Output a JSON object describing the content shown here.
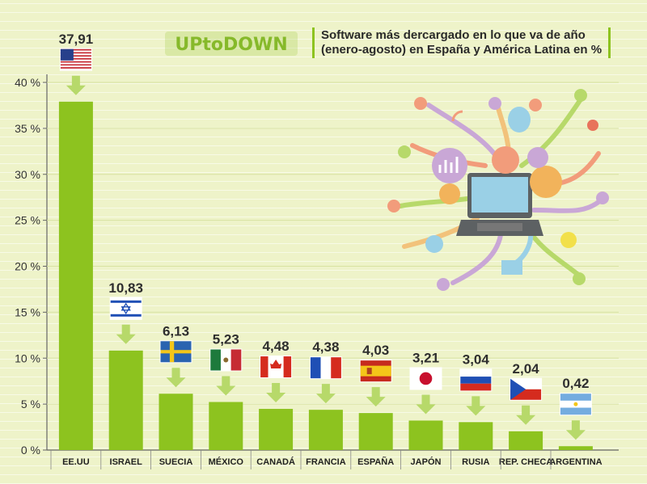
{
  "brand": {
    "logo_text": "UPtoDOWN",
    "colors": {
      "bar": "#8dc31f",
      "arrow": "#b7d96a",
      "grid": "#d7e2a0",
      "title_accent": "#8dc31f"
    }
  },
  "chart_data": {
    "type": "bar",
    "title": "Software más dercargado en lo que va de año (enero-agosto) en España y América Latina en %",
    "title_lines": [
      "Software más dercargado en lo que va de año",
      "(enero-agosto) en España y América Latina en %"
    ],
    "categories": [
      "EE.UU",
      "ISRAEL",
      "SUECIA",
      "MÉXICO",
      "CANADÁ",
      "FRANCIA",
      "ESPAÑA",
      "JAPÓN",
      "RUSIA",
      "REP. CHECA",
      "ARGENTINA"
    ],
    "values": [
      37.91,
      10.83,
      6.13,
      5.23,
      4.48,
      4.38,
      4.03,
      3.21,
      3.04,
      2.04,
      0.42
    ],
    "value_labels": [
      "37,91",
      "10,83",
      "6,13",
      "5,23",
      "4,48",
      "4,38",
      "4,03",
      "3,21",
      "3,04",
      "2,04",
      "0,42"
    ],
    "flags": [
      "us-flag",
      "israel-flag",
      "sweden-flag",
      "mexico-flag",
      "canada-flag",
      "france-flag",
      "spain-flag",
      "japan-flag",
      "russia-flag",
      "czech-flag",
      "argentina-flag"
    ],
    "ylim": [
      0,
      40
    ],
    "yticks": [
      0,
      5,
      10,
      15,
      20,
      25,
      30,
      35,
      40
    ],
    "ytick_labels": [
      "0 %",
      "5 %",
      "10 %",
      "15 %",
      "20 %",
      "25 %",
      "30 %",
      "35 %",
      "40 %"
    ],
    "xlabel": "",
    "ylabel": "",
    "grid": true,
    "legend": "none"
  },
  "illustration": {
    "icons": [
      "laptop-icon",
      "chart-icon",
      "link-icon",
      "thumbs-up-icon",
      "music-icon",
      "globe-icon",
      "mail-icon",
      "lightbulb-icon",
      "balloon-icon",
      "bird-icon",
      "wifi-icon",
      "heart-icon",
      "person-icon"
    ]
  }
}
